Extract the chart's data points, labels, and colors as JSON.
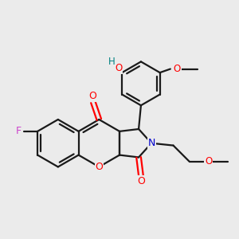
{
  "bg_color": "#ebebeb",
  "bond_color": "#1a1a1a",
  "bond_width": 1.6,
  "fig_size": [
    3.0,
    3.0
  ],
  "dpi": 100,
  "xlim": [
    -2.6,
    2.6
  ],
  "ylim": [
    -2.0,
    2.6
  ],
  "F_color": "#cc44cc",
  "O_color": "#ff0000",
  "N_color": "#0000cc",
  "OH_color": "#008080",
  "bond_dark": "#111111"
}
